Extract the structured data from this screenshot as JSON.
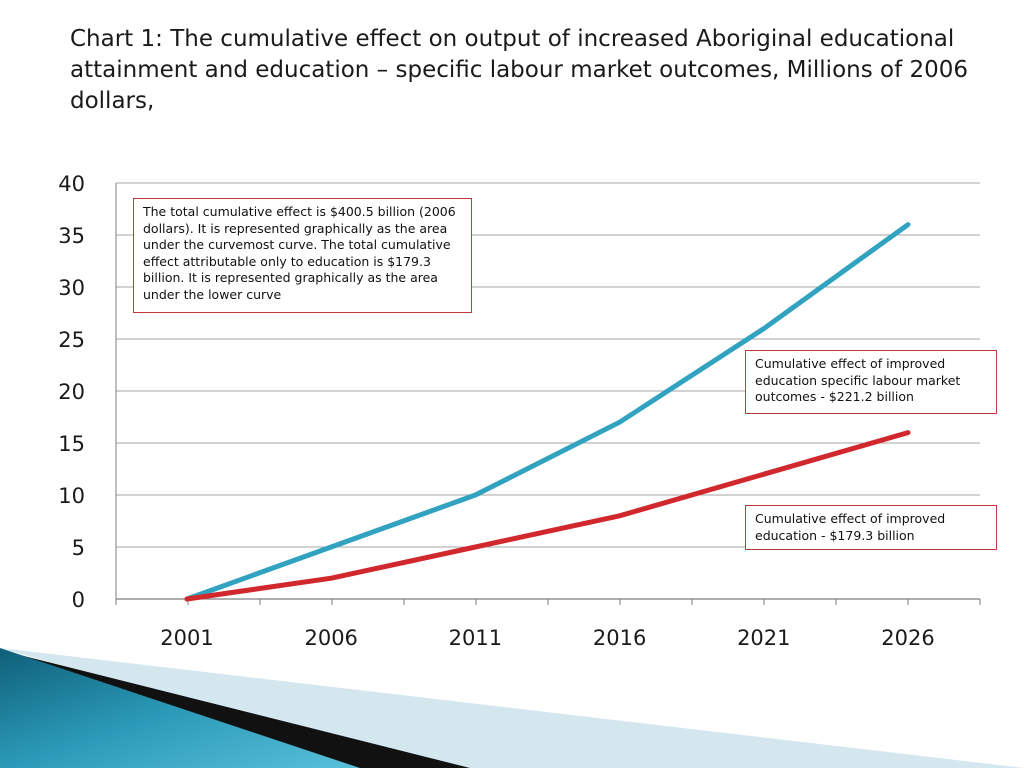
{
  "title": "Chart 1: The cumulative effect on output of increased Aboriginal educational attainment and education – specific labour market outcomes, Millions of 2006 dollars,",
  "annotations": {
    "total": "The total cumulative effect is $400.5 billion (2006 dollars).  It is represented graphically as the area under the curvemost curve.  The total cumulative effect attributable only to education is $179.3 billion.  It is represented graphically as the area under the lower curve",
    "outcomes": "Cumulative effect of improved education specific labour market outcomes - $221.2 billion",
    "education": "Cumulative effect of improved education - $179.3 billion"
  },
  "chart_data": {
    "type": "line",
    "x": [
      2001,
      2006,
      2011,
      2016,
      2021,
      2026
    ],
    "categories": [
      "2001",
      "2006",
      "2011",
      "2016",
      "2021",
      "2026"
    ],
    "ylim": [
      0,
      40
    ],
    "yticks": [
      0,
      5,
      10,
      15,
      20,
      25,
      30,
      35,
      40
    ],
    "grid": true,
    "xlabel": "",
    "ylabel": "",
    "series": [
      {
        "values": [
          0,
          5,
          10,
          17,
          26,
          36
        ],
        "color": "#31a3c0"
      },
      {
        "values": [
          0,
          2,
          5,
          8,
          12,
          16
        ],
        "color": "#d1282e"
      }
    ]
  },
  "colors": {
    "grid": "#a6a6a6",
    "axis": "#7f7f7f",
    "note_border": "#c0393f",
    "decor_teal": "#1d7f98",
    "decor_black": "#111111",
    "decor_light": "#d4e7ef"
  }
}
